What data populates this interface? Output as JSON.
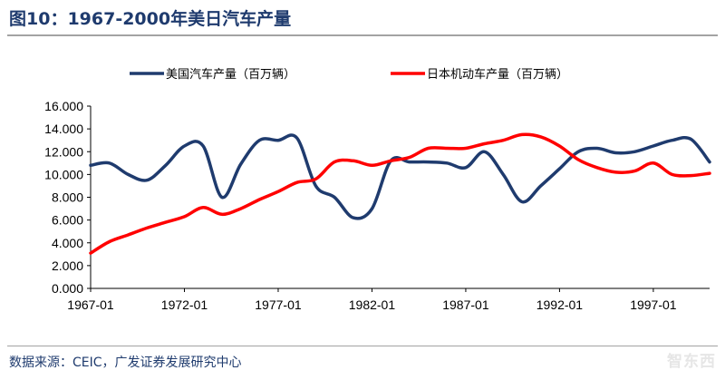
{
  "header": {
    "title": "图10：1967-2000年美日汽车产量"
  },
  "footer": {
    "source": "数据来源：CEIC，广发证券发展研究中心",
    "watermark": "智东西"
  },
  "chart_data": {
    "type": "line",
    "xlabel": "",
    "ylabel": "",
    "ylim": [
      0,
      16
    ],
    "y_ticks": [
      "0.000",
      "2.000",
      "4.000",
      "6.000",
      "8.000",
      "10.000",
      "12.000",
      "14.000",
      "16.000"
    ],
    "x_ticks": [
      "1967-01",
      "1972-01",
      "1977-01",
      "1982-01",
      "1987-01",
      "1992-01",
      "1997-01"
    ],
    "x_range": [
      1967,
      2000
    ],
    "grid": false,
    "legend_position": "top",
    "series": [
      {
        "name": "美国汽车产量（百万辆）",
        "color": "#1f3b6e",
        "x": [
          1967,
          1968,
          1969,
          1970,
          1971,
          1972,
          1973,
          1974,
          1975,
          1976,
          1977,
          1978,
          1979,
          1980,
          1981,
          1982,
          1983,
          1984,
          1985,
          1986,
          1987,
          1988,
          1989,
          1990,
          1991,
          1992,
          1993,
          1994,
          1995,
          1996,
          1997,
          1998,
          1999,
          2000
        ],
        "values": [
          10.8,
          11.0,
          10.0,
          9.5,
          10.8,
          12.5,
          12.5,
          8.0,
          10.9,
          13.0,
          13.0,
          13.2,
          9.0,
          8.0,
          6.2,
          7.0,
          11.2,
          11.1,
          11.1,
          11.0,
          10.6,
          12.0,
          10.0,
          7.6,
          9.0,
          10.5,
          12.0,
          12.3,
          11.9,
          12.0,
          12.5,
          13.0,
          13.1,
          11.1
        ]
      },
      {
        "name": "日本机动车产量（百万辆）",
        "color": "#ff0000",
        "x": [
          1967,
          1968,
          1969,
          1970,
          1971,
          1972,
          1973,
          1974,
          1975,
          1976,
          1977,
          1978,
          1979,
          1980,
          1981,
          1982,
          1983,
          1984,
          1985,
          1986,
          1987,
          1988,
          1989,
          1990,
          1991,
          1992,
          1993,
          1994,
          1995,
          1996,
          1997,
          1998,
          1999,
          2000
        ],
        "values": [
          3.1,
          4.1,
          4.7,
          5.3,
          5.8,
          6.3,
          7.1,
          6.5,
          7.0,
          7.8,
          8.5,
          9.3,
          9.6,
          11.1,
          11.2,
          10.8,
          11.2,
          11.5,
          12.3,
          12.3,
          12.3,
          12.7,
          13.0,
          13.5,
          13.3,
          12.5,
          11.3,
          10.6,
          10.2,
          10.3,
          11.0,
          10.0,
          9.9,
          10.1
        ]
      }
    ]
  }
}
